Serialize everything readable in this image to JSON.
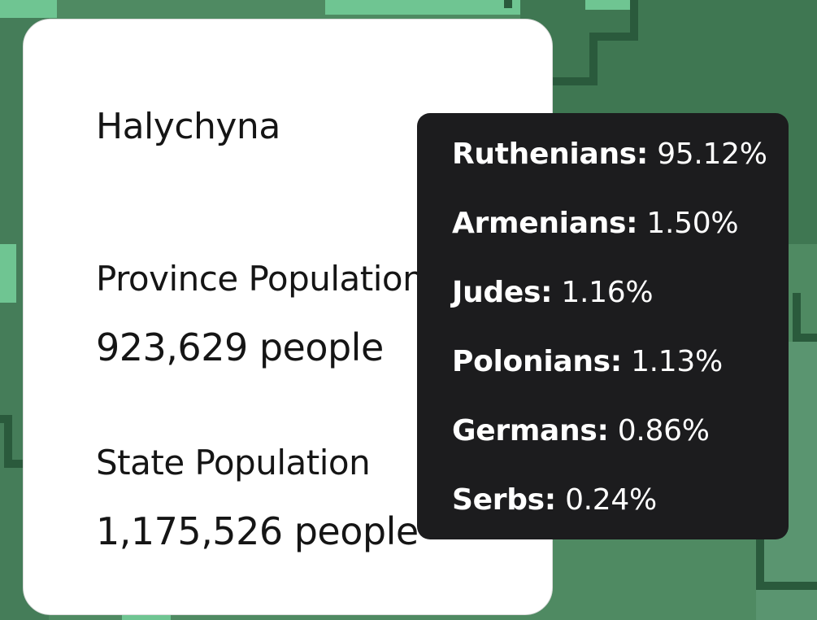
{
  "province": {
    "name": "Halychyna",
    "population_label": "Province Population",
    "population_value": "923,629 people"
  },
  "state": {
    "population_label": "State Population",
    "population_value": "1,175,526 people"
  },
  "tooltip": {
    "rows": [
      {
        "name": "Ruthenians:",
        "pct": "95.12%"
      },
      {
        "name": "Armenians:",
        "pct": "1.50%"
      },
      {
        "name": "Judes:",
        "pct": "1.16%"
      },
      {
        "name": "Polonians:",
        "pct": "1.13%"
      },
      {
        "name": "Germans:",
        "pct": "0.86%"
      },
      {
        "name": "Serbs:",
        "pct": "0.24%"
      }
    ]
  },
  "colors": {
    "map_dark": "#3d7250",
    "map_mid": "#4f8a62",
    "map_light": "#6fc592",
    "map_border": "#2a5a3c",
    "card_bg": "#ffffff",
    "tooltip_bg": "#1c1c1e"
  }
}
